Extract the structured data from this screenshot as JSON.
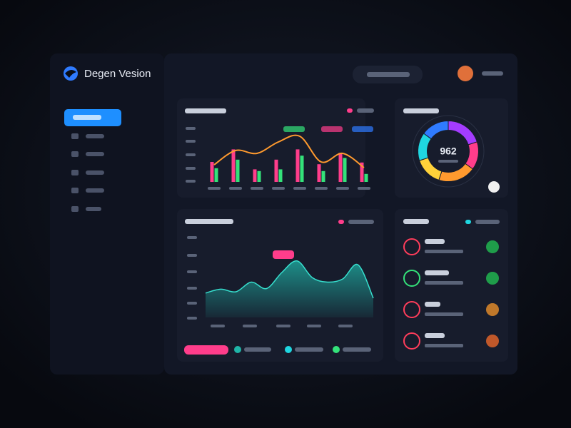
{
  "brand": "Degen Vesion",
  "chart_data": [
    {
      "type": "bar",
      "categories": [
        null,
        null,
        null,
        null,
        null,
        null,
        null,
        null
      ],
      "ylim": [
        0,
        100
      ],
      "series": [
        {
          "color": "#ff3d8b",
          "values": [
            35,
            57,
            22,
            39,
            57,
            31,
            51,
            34
          ]
        },
        {
          "color": "#34e27a",
          "values": [
            24,
            39,
            19,
            22,
            46,
            19,
            42,
            14
          ]
        }
      ],
      "line": {
        "color": "#ff9a2e",
        "values": [
          30,
          55,
          50,
          70,
          80,
          35,
          50,
          25
        ]
      }
    },
    {
      "type": "area",
      "color": "#1fb5a8",
      "ylim": [
        0,
        100
      ],
      "values": [
        38,
        44,
        40,
        55,
        45,
        70,
        88,
        62,
        55,
        60,
        82,
        30
      ]
    },
    {
      "type": "donut",
      "center_label": "962",
      "values": [
        20,
        15,
        20,
        15,
        15,
        15
      ],
      "colors": [
        "#a43cff",
        "#ff3d8b",
        "#ff9a2e",
        "#ffd23a",
        "#1fd6e0",
        "#2f7bff"
      ]
    }
  ]
}
